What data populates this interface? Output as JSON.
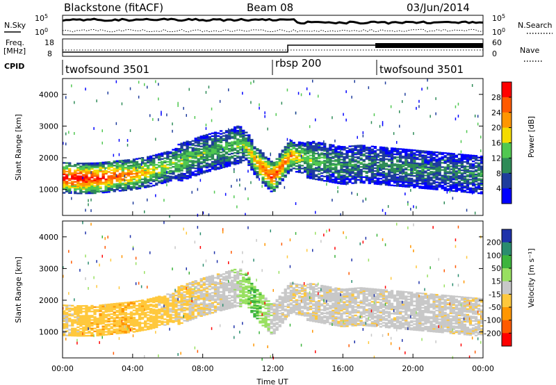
{
  "header": {
    "station": "Blackstone (fitACF)",
    "beam": "Beam 08",
    "date": "03/Jun/2014"
  },
  "panels": {
    "nsky_label": "N.Sky",
    "nsearch_label": "N.Search",
    "freq_label_line1": "Freq.",
    "freq_label_line2": "[MHz]",
    "nave_label": "Nave",
    "cpid_label": "CPID",
    "noise_ticks_left": [
      "10^5",
      "10^0"
    ],
    "noise_ticks_right": [
      "10^5",
      "10^0"
    ],
    "freq_ticks_left": [
      "18",
      "8"
    ],
    "nave_ticks_right": [
      "60",
      "0"
    ]
  },
  "cpid": [
    {
      "label": "twofsound 3501",
      "start_hour": 0
    },
    {
      "label": "rbsp 200",
      "start_hour": 12
    },
    {
      "label": "twofsound 3501",
      "start_hour": 18
    }
  ],
  "axes": {
    "ylabel": "Slant Range [km]",
    "xlabel": "Time UT",
    "yticks": [
      "1000",
      "2000",
      "3000",
      "4000"
    ],
    "xticks": [
      "00:00",
      "04:00",
      "08:00",
      "12:00",
      "16:00",
      "20:00",
      "00:00"
    ]
  },
  "colorbars": {
    "power": {
      "label": "Power [dB]",
      "ticks": [
        "28",
        "24",
        "20",
        "16",
        "12",
        "8",
        "4"
      ],
      "colors": [
        "#ff0000",
        "#ff5a00",
        "#ff9600",
        "#f5dc00",
        "#50c850",
        "#2e8b57",
        "#1e3c9c",
        "#0000ff"
      ]
    },
    "velocity": {
      "label": "Velocity [m s⁻¹]",
      "ticks": [
        "200",
        "100",
        "50",
        "15",
        "-15",
        "-50",
        "-100",
        "-200"
      ],
      "colors": [
        "#1e32aa",
        "#2a8c6e",
        "#3cb43c",
        "#98e060",
        "#c8c8c8",
        "#ffc83c",
        "#ff9600",
        "#ff5a00",
        "#ff0000"
      ]
    }
  },
  "chart_data": [
    {
      "type": "heatmap",
      "title": "Power [dB]",
      "xlabel": "Time UT",
      "ylabel": "Slant Range [km]",
      "xlim": [
        0,
        24
      ],
      "ylim": [
        180,
        4500
      ],
      "zlim": [
        0,
        30
      ],
      "ionospheric_band": {
        "x": [
          0,
          1,
          2,
          3,
          4,
          5,
          6,
          7,
          8,
          9,
          10,
          10.5,
          11,
          12,
          13,
          14,
          15,
          16,
          17,
          18,
          19,
          20,
          21,
          22,
          23,
          24
        ],
        "center_km": [
          1350,
          1330,
          1340,
          1400,
          1450,
          1550,
          1700,
          1900,
          2100,
          2250,
          2400,
          2350,
          1900,
          1350,
          2050,
          1950,
          1850,
          1750,
          1800,
          1750,
          1700,
          1650,
          1600,
          1550,
          1500,
          1450
        ],
        "peak_db": [
          30,
          30,
          28,
          26,
          22,
          18,
          16,
          14,
          13,
          12,
          14,
          16,
          22,
          26,
          22,
          14,
          12,
          10,
          10,
          9,
          10,
          10,
          9,
          9,
          9,
          10
        ]
      }
    },
    {
      "type": "heatmap",
      "title": "Velocity [m s⁻¹]",
      "xlabel": "Time UT",
      "ylabel": "Slant Range [km]",
      "xlim": [
        0,
        24
      ],
      "ylim": [
        180,
        4500
      ],
      "zlim": [
        -200,
        200
      ],
      "ionospheric_band": {
        "x": [
          0,
          2,
          4,
          6,
          8,
          10,
          10.5,
          11,
          12,
          13,
          16,
          20,
          24
        ],
        "velocity": [
          -20,
          -40,
          -40,
          -25,
          -10,
          5,
          40,
          60,
          0,
          -5,
          -5,
          0,
          -5
        ]
      }
    }
  ]
}
